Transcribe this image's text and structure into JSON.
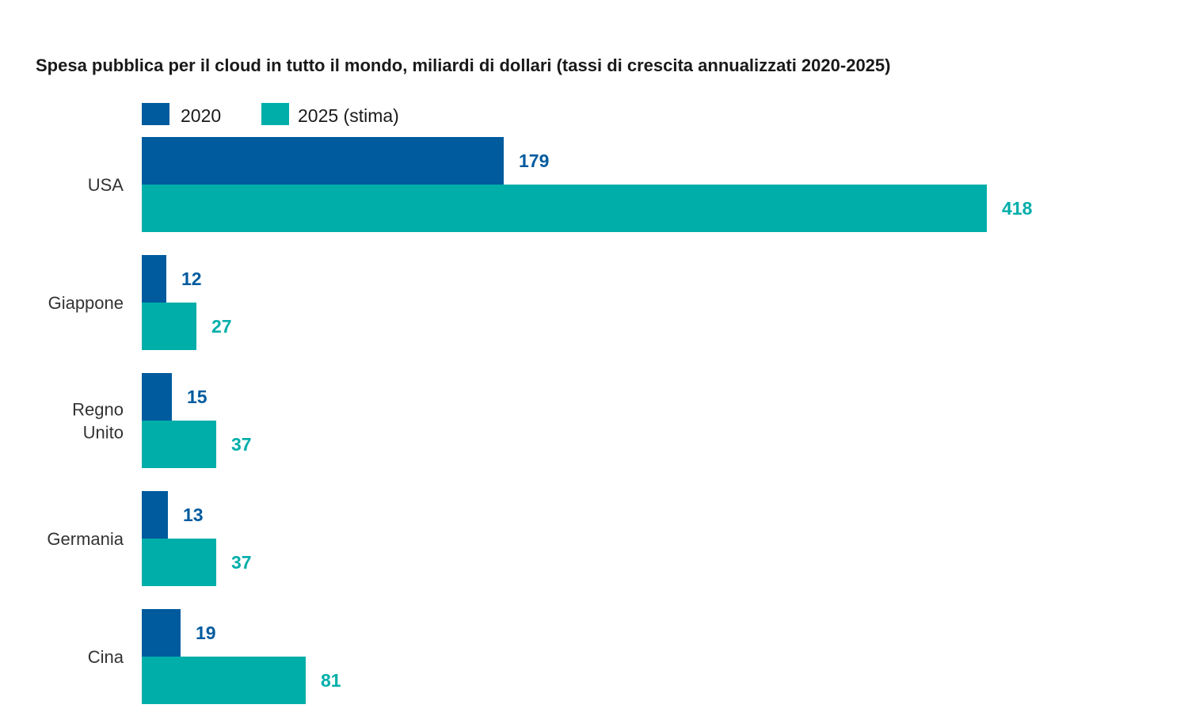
{
  "chart_data": {
    "type": "bar",
    "orientation": "horizontal",
    "title": "Spesa pubblica per il cloud in tutto il mondo, miliardi di dollari (tassi di crescita annualizzati 2020-2025)",
    "categories": [
      [
        "USA"
      ],
      [
        "Giappone"
      ],
      [
        "Regno",
        "Unito"
      ],
      [
        "Germania"
      ],
      [
        "Cina"
      ]
    ],
    "series": [
      {
        "name": "2020",
        "color": "#005b9e",
        "values": [
          179,
          12,
          15,
          13,
          19
        ],
        "labels": [
          "179",
          "12",
          "15",
          "13",
          "19"
        ]
      },
      {
        "name": "2025 (stima)",
        "color": "#00aea9",
        "values": [
          418,
          27,
          37,
          37,
          81
        ],
        "labels": [
          "418",
          "27",
          "37",
          "37",
          "81"
        ]
      }
    ],
    "legend_position": "top-left",
    "grid": false,
    "xlim": [
      0,
      418
    ]
  }
}
